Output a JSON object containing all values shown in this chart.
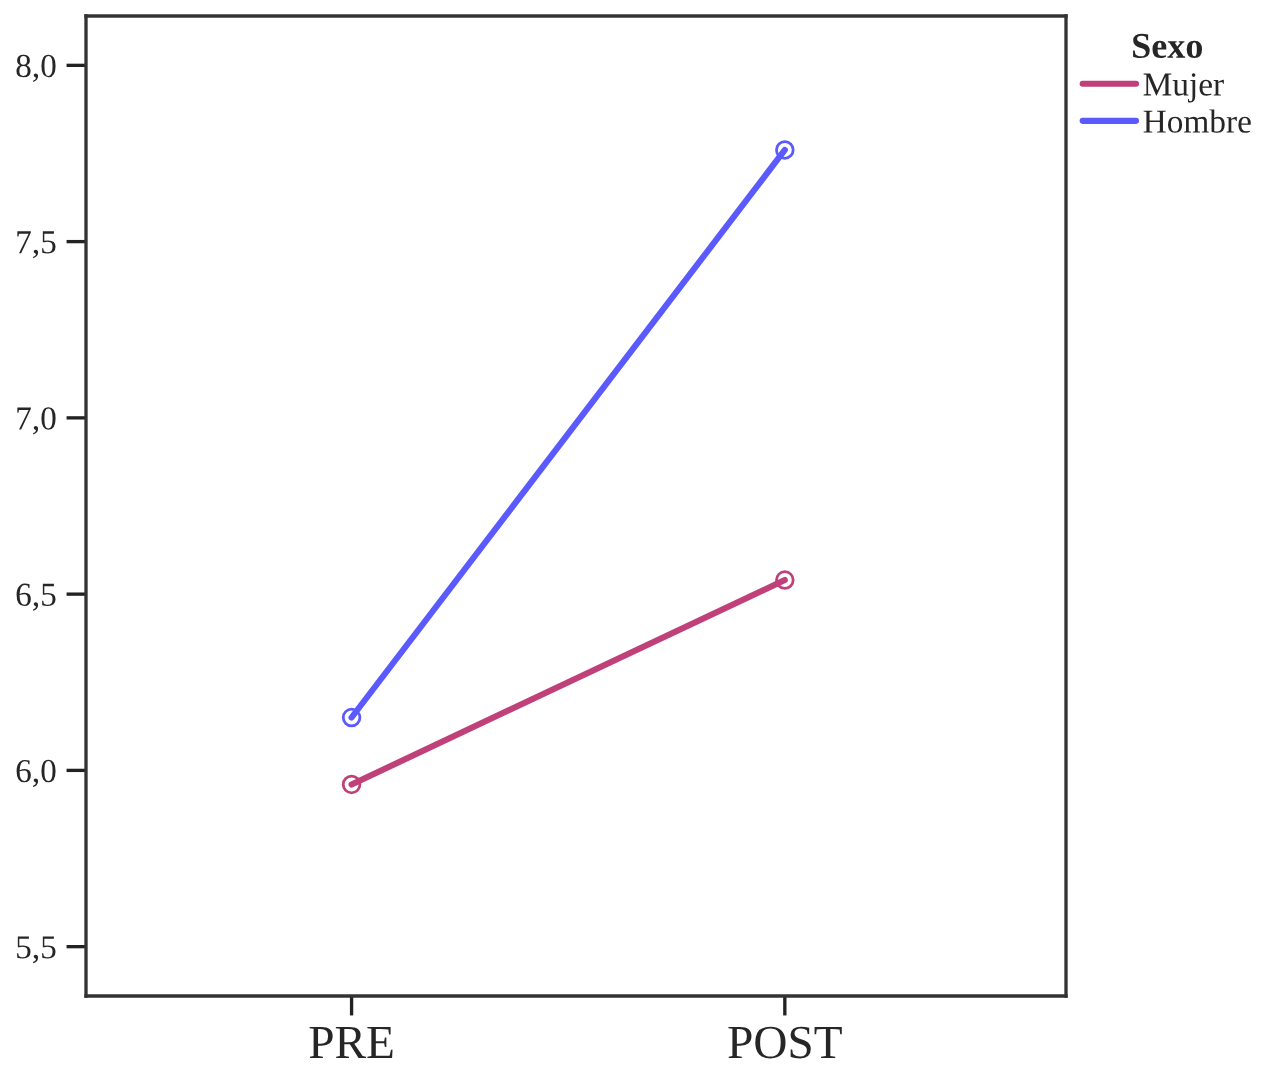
{
  "chart_data": {
    "type": "line",
    "categories": [
      "PRE",
      "POST"
    ],
    "series": [
      {
        "name": "Mujer",
        "color": "#c0407a",
        "values": [
          5.96,
          6.54
        ]
      },
      {
        "name": "Hombre",
        "color": "#5a5aff",
        "values": [
          6.15,
          7.76
        ]
      }
    ],
    "legend_title": "Sexo",
    "legend": "top right",
    "marker": "circle",
    "line_style": "solid",
    "grid": false,
    "ylim": [
      5.36,
      8.14
    ],
    "yticks": [
      {
        "value": 5.5,
        "label": "5,5"
      },
      {
        "value": 6.0,
        "label": "6,0"
      },
      {
        "value": 6.5,
        "label": "6,5"
      },
      {
        "value": 7.0,
        "label": "7,0"
      },
      {
        "value": 7.5,
        "label": "7,5"
      },
      {
        "value": 8.0,
        "label": "8,0"
      }
    ]
  }
}
